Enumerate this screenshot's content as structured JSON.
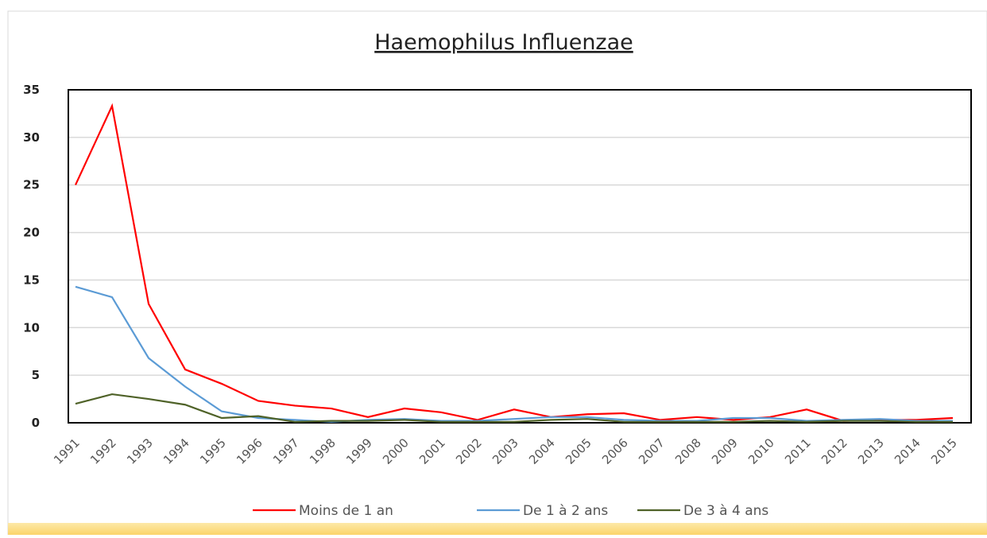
{
  "chart_data": {
    "type": "line",
    "title": "Haemophilus Influenzae",
    "categories": [
      "1991",
      "1992",
      "1993",
      "1994",
      "1995",
      "1996",
      "1997",
      "1998",
      "1999",
      "2000",
      "2001",
      "2002",
      "2003",
      "2004",
      "2005",
      "2006",
      "2007",
      "2008",
      "2009",
      "2010",
      "2011",
      "2012",
      "2013",
      "2014",
      "2015"
    ],
    "series": [
      {
        "name": "Moins de 1 an",
        "color": "#ff0000",
        "values": [
          25,
          33.3,
          12.5,
          5.6,
          4.1,
          2.3,
          1.8,
          1.5,
          0.6,
          1.5,
          1.1,
          0.3,
          1.4,
          0.6,
          0.9,
          1.0,
          0.3,
          0.6,
          0.3,
          0.6,
          1.4,
          0.2,
          0.3,
          0.3,
          0.5
        ]
      },
      {
        "name": "De 1 à 2 ans",
        "color": "#5b9bd5",
        "values": [
          14.3,
          13.2,
          6.8,
          3.8,
          1.2,
          0.5,
          0.3,
          0.1,
          0.3,
          0.4,
          0.2,
          0.2,
          0.4,
          0.6,
          0.6,
          0.3,
          0.2,
          0.2,
          0.5,
          0.5,
          0.2,
          0.3,
          0.4,
          0.2,
          0.2
        ]
      },
      {
        "name": "De 3 à 4 ans",
        "color": "#4f6228",
        "values": [
          2.0,
          3.0,
          2.5,
          1.9,
          0.5,
          0.7,
          0.1,
          0.2,
          0.2,
          0.3,
          0.1,
          0.1,
          0.1,
          0.3,
          0.4,
          0.1,
          0.1,
          0.1,
          0.1,
          0.2,
          0.1,
          0.2,
          0.2,
          0.1,
          0.1
        ]
      }
    ],
    "ylim": [
      0,
      35
    ],
    "yticks": [
      0,
      5,
      10,
      15,
      20,
      25,
      30,
      35
    ],
    "grid": true,
    "legend": "bottom"
  }
}
